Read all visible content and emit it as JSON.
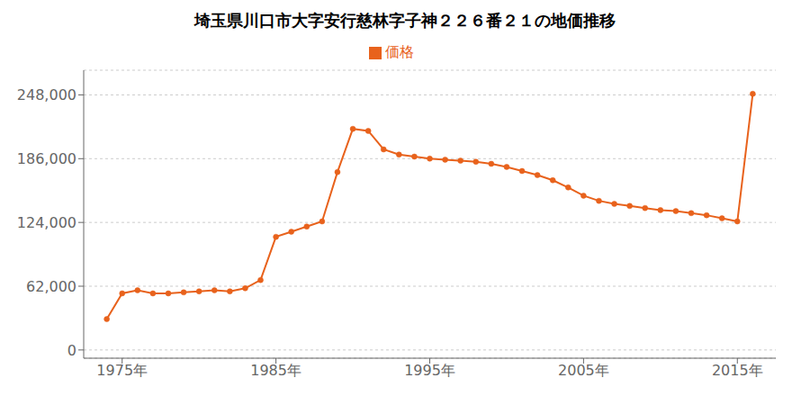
{
  "chart_data": {
    "type": "line",
    "title": "埼玉県川口市大字安行慈林字子神２２６番２１の地価推移",
    "legend": "top",
    "grid": "y",
    "x": [
      1974,
      1975,
      1976,
      1977,
      1978,
      1979,
      1980,
      1981,
      1982,
      1983,
      1984,
      1985,
      1986,
      1987,
      1988,
      1989,
      1990,
      1991,
      1992,
      1993,
      1994,
      1995,
      1996,
      1997,
      1998,
      1999,
      2000,
      2001,
      2002,
      2003,
      2004,
      2005,
      2006,
      2007,
      2008,
      2009,
      2010,
      2011,
      2012,
      2013,
      2014,
      2015,
      2016
    ],
    "series": [
      {
        "name": "価格",
        "color": "#e8621c",
        "marker": "circle",
        "values": [
          30000,
          55000,
          58000,
          55000,
          55000,
          56000,
          57000,
          58000,
          57000,
          60000,
          68000,
          110000,
          115000,
          120000,
          125000,
          173000,
          215000,
          213000,
          195000,
          190000,
          188000,
          186000,
          185000,
          184000,
          183000,
          181000,
          178000,
          174000,
          170000,
          165000,
          158000,
          150000,
          145000,
          142000,
          140000,
          138000,
          136000,
          135000,
          133000,
          131000,
          128000,
          125000,
          249000
        ]
      }
    ],
    "xlim": [
      1972.5,
      2017.5
    ],
    "xticks": [
      {
        "value": 1975,
        "label": "1975年"
      },
      {
        "value": 1985,
        "label": "1985年"
      },
      {
        "value": 1995,
        "label": "1995年"
      },
      {
        "value": 2005,
        "label": "2005年"
      },
      {
        "value": 2015,
        "label": "2015年"
      }
    ],
    "ylim": [
      -8000,
      272000
    ],
    "yticks": [
      0,
      {
        "value": 62000,
        "label": "62,000"
      },
      {
        "value": 124000,
        "label": "124,000"
      },
      {
        "value": 186000,
        "label": "186,000"
      },
      {
        "value": 248000,
        "label": "248,000"
      }
    ]
  }
}
